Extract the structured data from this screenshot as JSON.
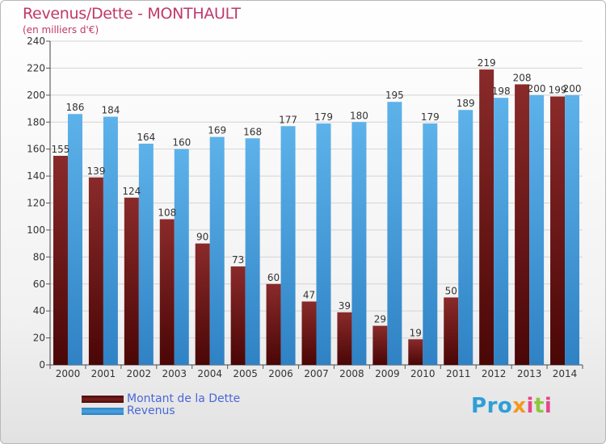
{
  "header": {
    "title": "Revenus/Dette - MONTHAULT",
    "subtitle": "(en milliers d'€)"
  },
  "colors": {
    "dette": "#7a1e1e",
    "revenus": "#4aa3e0",
    "title": "#c0386a",
    "legend_text": "#4a67d8",
    "grid": "#d4d4d4"
  },
  "legend": {
    "items": [
      {
        "label": "Montant de la Dette",
        "color": "#7a1e1e"
      },
      {
        "label": "Revenus",
        "color": "#4aa3e0"
      }
    ],
    "placement": "bottom-left"
  },
  "logo": {
    "text": "Proxiti",
    "icon": "proxiti-logo"
  },
  "chart_data": {
    "type": "bar",
    "title": "Revenus/Dette - MONTHAULT",
    "subtitle": "(en milliers d'€)",
    "xlabel": "",
    "ylabel": "",
    "ylim": [
      0,
      240
    ],
    "yticks": [
      0,
      20,
      40,
      60,
      80,
      100,
      120,
      140,
      160,
      180,
      200,
      220,
      240
    ],
    "grid": true,
    "categories": [
      "2000",
      "2001",
      "2002",
      "2003",
      "2004",
      "2005",
      "2006",
      "2007",
      "2008",
      "2009",
      "2010",
      "2011",
      "2012",
      "2013",
      "2014"
    ],
    "series": [
      {
        "name": "Montant de la Dette",
        "color": "#7a1e1e",
        "values": [
          155,
          139,
          124,
          108,
          90,
          73,
          60,
          47,
          39,
          29,
          19,
          50,
          219,
          208,
          199
        ]
      },
      {
        "name": "Revenus",
        "color": "#4aa3e0",
        "values": [
          186,
          184,
          164,
          160,
          169,
          168,
          177,
          179,
          180,
          195,
          179,
          189,
          198,
          200,
          200
        ]
      }
    ]
  }
}
